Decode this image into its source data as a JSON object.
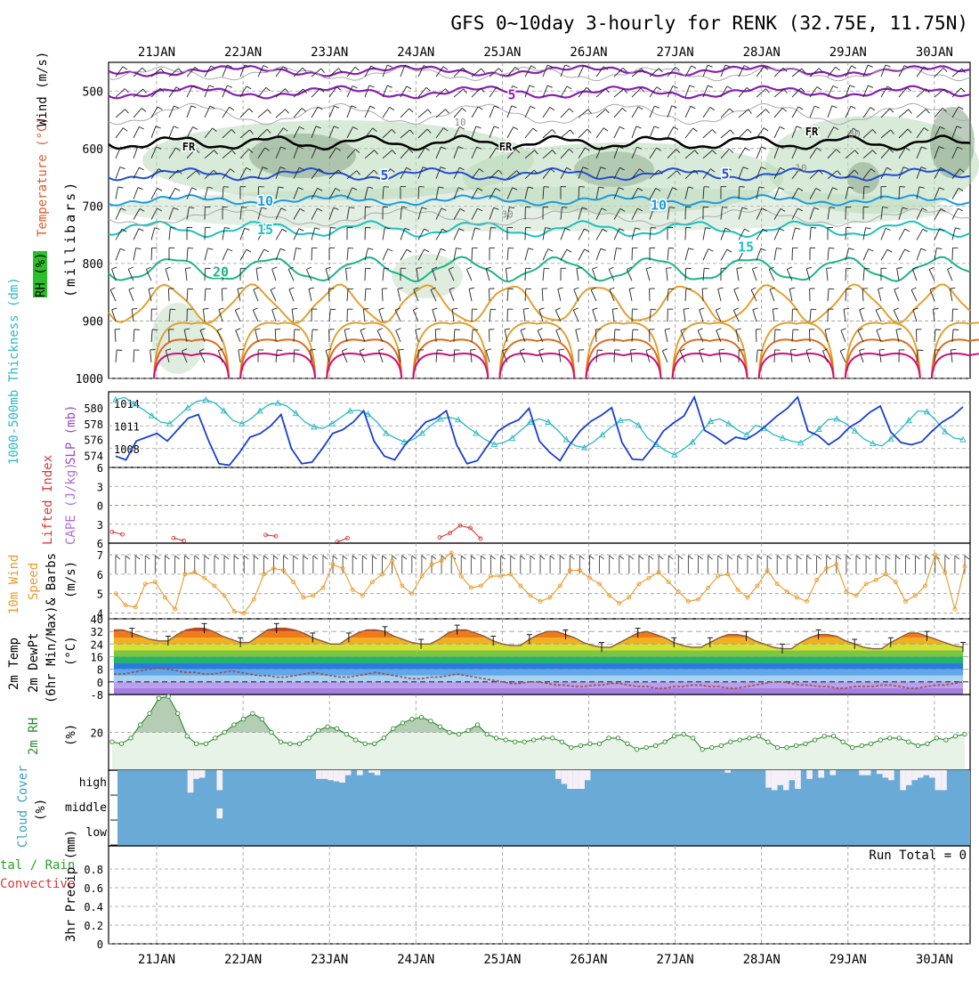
{
  "title": "GFS 0~10day 3-hourly for RENK (32.75E, 11.75N)",
  "dates": [
    "21JAN",
    "22JAN",
    "23JAN",
    "24JAN",
    "25JAN",
    "26JAN",
    "27JAN",
    "28JAN",
    "29JAN",
    "30JAN"
  ],
  "colors": {
    "axis": "#000000",
    "grid": "#999999",
    "temp5": "#8a1fb5",
    "temp_fr": "#000000",
    "temp_blue": "#1f4fd6",
    "temp10": "#1c9be0",
    "temp15": "#1cc1c1",
    "temp20": "#1cb38a",
    "temp_warm": "#e0a030",
    "temp_hot": "#e06a1c",
    "temp_magenta": "#d0107a",
    "rh_fill": "#b8d8b8",
    "rh_dark": "#7a9a7a",
    "slp": "#1a3fcf",
    "thickness": "#2bb8c4",
    "lifted": "#d83a3a",
    "wind10": "#e89a2a",
    "rh2m_line": "#2a8a2a",
    "rh2m_fill": "#e8f3e8",
    "rh2m_peak": "#b5cdb5",
    "cloud": "#6aaad6",
    "cloud_clear": "#f5f0f8",
    "dewpt": "#a05040",
    "temp2m_line": "#8a5a3a"
  },
  "labels": {
    "panel1_label_rh": "RH (%)",
    "panel1_label_temp": "Temperature (°C)",
    "panel1_label_wind": "Wind (m/s)",
    "panel1_axis": "(millibars)",
    "panel2_label_thick": "1000-500mb Thickness (dm)",
    "panel2_label_slp": "SLP (mb)",
    "panel3_label_li": "Lifted Index",
    "panel3_label_cape": "CAPE (J/kg)",
    "panel4_label_a": "10m Wind",
    "panel4_label_b": "Speed",
    "panel4_label_c": "& Barbs",
    "panel4_axis": "(m/s)",
    "panel5_label_a": "2m Temp",
    "panel5_label_b": "2m DewPt",
    "panel5_label_c": "(6hr Min/Max)",
    "panel5_axis": "(°C)",
    "panel6_label": "2m RH",
    "panel6_axis": "(%)",
    "panel7_label": "Cloud Cover",
    "panel7_axis": "(%)",
    "panel8_label_a": "tal / Rain",
    "panel8_label_b": "Convective",
    "panel8_axis": "3hr Precip (mm)",
    "run_total": "Run Total = 0",
    "fr": "FR"
  },
  "chart_data": [
    {
      "type": "line",
      "title": "",
      "panel": "upper-air cross section",
      "yticks": [
        500,
        600,
        700,
        800,
        900,
        1000
      ],
      "ylim": [
        450,
        1000
      ],
      "isotherm_labels": [
        "5",
        "FR",
        "5",
        "10",
        "15",
        "20"
      ],
      "rh_labels": [
        "10",
        "30"
      ],
      "isotherms": [
        {
          "name": "5",
          "level": 502
        },
        {
          "name": "FR",
          "level": 590
        },
        {
          "name": "5",
          "level": 645
        },
        {
          "name": "10",
          "level": 690
        },
        {
          "name": "15",
          "level": 740
        },
        {
          "name": "20",
          "level": 810
        }
      ]
    },
    {
      "type": "line",
      "panel": "thickness and slp",
      "yticks_left": [
        574,
        576,
        578,
        580
      ],
      "yticks_right": [
        1008,
        1011,
        1014
      ],
      "ylim_left": [
        572.5,
        582
      ],
      "ylim_right": [
        1005.5,
        1015.5
      ],
      "series": [
        {
          "name": "SLP",
          "axis": "right",
          "values": [
            1007,
            1006.5,
            1009,
            1009.5,
            1010,
            1009,
            1010.5,
            1012,
            1012.5,
            1009,
            1006,
            1005.8,
            1007.5,
            1009.5,
            1010,
            1011,
            1012.5,
            1008,
            1006,
            1006.2,
            1008,
            1010,
            1010.5,
            1011.5,
            1013,
            1009,
            1007,
            1006.5,
            1008.5,
            1010,
            1011.5,
            1012,
            1013,
            1008.5,
            1006,
            1006.4,
            1008.4,
            1010.3,
            1011.2,
            1011.8,
            1013.3,
            1009,
            1007.5,
            1006.4,
            1008.6,
            1010.4,
            1011.6,
            1012.4,
            1013.4,
            1008.8,
            1006.6,
            1006.5,
            1008.2,
            1010.3,
            1011.4,
            1012.3,
            1014.8,
            1010.4,
            1009.6,
            1008.6,
            1009.5,
            1009.2,
            1010,
            1011.1,
            1012.3,
            1013.3,
            1014.8,
            1010.3,
            1009.7,
            1008.5,
            1009.4,
            1010.8,
            1011.6,
            1012.8,
            1013.6,
            1010.2,
            1008.8,
            1008.5,
            1008.9,
            1010.3,
            1011.5,
            1012.3,
            1013.5
          ]
        },
        {
          "name": "Thickness",
          "axis": "left",
          "values": [
            581,
            581.3,
            580.5,
            579.8,
            579,
            578.2,
            578,
            579,
            580,
            580.8,
            581,
            580.6,
            579.6,
            578.4,
            578,
            578.6,
            579.6,
            580.4,
            580.6,
            580.2,
            579.3,
            578.2,
            577.6,
            577.4,
            578,
            578.8,
            579.6,
            579.7,
            579.2,
            578.2,
            576.8,
            576.2,
            575.7,
            576,
            576.8,
            577.8,
            578.6,
            578.8,
            578.5,
            577.6,
            576.8,
            576,
            575.4,
            575.6,
            576.2,
            577.2,
            578.2,
            578.6,
            578.2,
            577.2,
            576,
            575.2,
            575,
            575.7,
            576.6,
            577.6,
            578.4,
            578.5,
            577.8,
            576.2,
            575.4,
            574.6,
            574.1,
            574.8,
            575.7,
            577,
            578.3,
            578.6,
            578,
            577.2,
            576.6,
            577.8,
            577.4,
            576.6,
            576.2,
            575.8,
            575.6,
            576.3,
            577.3,
            578.5,
            578.6,
            578,
            577.1,
            576.1,
            575.5,
            575.2,
            576.1,
            577.2,
            578.4,
            579.6,
            579.5,
            578.4,
            577,
            576.2,
            576
          ]
        }
      ]
    },
    {
      "type": "line",
      "panel": "lifted index and cape",
      "yticks": [
        -6,
        -3,
        0,
        3,
        6
      ],
      "ylim": [
        -6,
        6
      ],
      "series": [
        {
          "name": "Lifted Index",
          "values": [
            4.2,
            4.6,
            null,
            null,
            null,
            null,
            5.2,
            5.6,
            null,
            null,
            null,
            null,
            null,
            null,
            null,
            4.7,
            4.9,
            null,
            null,
            null,
            null,
            null,
            5.8,
            5.2,
            null,
            null,
            null,
            null,
            null,
            null,
            null,
            null,
            5.1,
            4.4,
            3.2,
            3.6,
            5.3
          ]
        }
      ]
    },
    {
      "type": "line",
      "panel": "10m wind speed",
      "yticks": [
        4,
        5,
        6,
        7
      ],
      "ylim": [
        3.7,
        7.6
      ],
      "series": [
        {
          "name": "10m Wind Speed",
          "values": [
            5,
            4.4,
            4.3,
            5.5,
            5.6,
            4.8,
            4.2,
            6,
            6.1,
            5.8,
            5.4,
            4.9,
            4.1,
            4,
            4.7,
            6,
            6.3,
            6.2,
            5.6,
            4.8,
            4.9,
            5.3,
            6.5,
            6.3,
            5.2,
            4.9,
            5.6,
            6,
            6.7,
            5.4,
            5,
            5.9,
            6.5,
            6.7,
            7.1,
            5.9,
            5.3,
            5.4,
            5.9,
            5.9,
            6,
            5.4,
            4.9,
            4.6,
            4.8,
            5.4,
            6.2,
            6.2,
            5.8,
            5.5,
            4.9,
            4.5,
            4.8,
            5.5,
            5.8,
            6.1,
            5.6,
            5.1,
            4.6,
            4.7,
            5.3,
            5.9,
            6,
            5.2,
            4.8,
            5.4,
            6.2,
            5.5,
            5.1,
            4.8,
            4.6,
            5.7,
            6.3,
            6.5,
            5.1,
            4.9,
            5.5,
            5.7,
            6,
            5.6,
            4.6,
            4.9,
            5.4,
            7,
            6.1,
            4.2,
            6.4
          ]
        }
      ]
    },
    {
      "type": "area",
      "panel": "2m temperature and dewpoint",
      "yticks": [
        -8,
        0,
        8,
        16,
        24,
        32,
        40
      ],
      "ylim": [
        -8,
        40
      ],
      "series": [
        {
          "name": "2m Temp",
          "values": [
            33,
            33,
            31,
            29,
            27,
            26,
            26,
            30,
            33,
            34,
            34,
            32,
            29,
            27,
            25,
            25,
            29,
            33,
            34,
            34,
            33,
            31,
            28,
            26,
            24,
            24,
            28,
            31,
            33,
            33,
            32,
            29,
            27,
            25,
            24,
            24,
            27,
            31,
            33,
            33,
            31,
            29,
            26,
            24,
            23,
            23,
            27,
            30,
            32,
            32,
            30,
            28,
            25,
            23,
            22,
            22,
            25,
            28,
            31,
            32,
            30,
            28,
            25,
            23,
            22,
            22,
            25,
            28,
            30,
            30,
            29,
            26,
            24,
            22,
            21,
            21,
            25,
            28,
            30,
            30,
            29,
            26,
            24,
            22,
            21,
            21,
            25,
            28,
            31,
            31,
            29,
            27,
            25,
            23,
            22
          ]
        },
        {
          "name": "2m DewPt",
          "values": [
            5,
            5,
            6,
            7,
            8,
            9,
            8,
            7,
            6,
            6,
            5,
            5,
            6,
            7,
            6,
            5,
            4,
            4,
            3,
            3,
            4,
            5,
            6,
            5,
            4,
            3,
            3,
            4,
            5,
            6,
            5,
            4,
            3,
            2,
            2,
            3,
            3,
            4,
            5,
            4,
            3,
            2,
            1,
            0,
            -1,
            -1,
            0,
            0,
            -1,
            -2,
            -2,
            -3,
            -3,
            -2,
            -2,
            -1,
            -1,
            -2,
            -3,
            -3,
            -4,
            -4,
            -3,
            -3,
            -2,
            -2,
            -3,
            -3,
            -4,
            -4,
            -3,
            -2,
            -1,
            0,
            0,
            -1,
            -2,
            -2,
            -3,
            -3,
            -4,
            -4,
            -3,
            -3,
            -3,
            -2,
            -2,
            -3,
            -4,
            -4,
            -3,
            -2,
            -2,
            -1,
            0
          ]
        }
      ]
    },
    {
      "type": "area",
      "panel": "2m relative humidity",
      "yticks": [
        20
      ],
      "ylim": [
        0,
        40
      ],
      "series": [
        {
          "name": "2m RH",
          "values": [
            15,
            14,
            17,
            24,
            30,
            38,
            39,
            30,
            18,
            14,
            14,
            17,
            20,
            24,
            27,
            30,
            27,
            20,
            15,
            14,
            14,
            17,
            21,
            23,
            22,
            19,
            16,
            14,
            14,
            17,
            22,
            25,
            27,
            28,
            26,
            23,
            20,
            19,
            21,
            24,
            19,
            17,
            16,
            15,
            15,
            16,
            17,
            17,
            15,
            12,
            13,
            14,
            14,
            17,
            17,
            14,
            11,
            12,
            13,
            15,
            18,
            19,
            17,
            11,
            12,
            13,
            15,
            16,
            17,
            18,
            15,
            12,
            12,
            13,
            14,
            16,
            18,
            18,
            15,
            12,
            13,
            14,
            16,
            17,
            17,
            15,
            13,
            14,
            17,
            16,
            18,
            19
          ]
        }
      ]
    },
    {
      "type": "bar",
      "panel": "cloud cover",
      "yticks_labels": [
        "high",
        "middle",
        "low"
      ],
      "series": [
        {
          "name": "high",
          "values": [
            0,
            0,
            0,
            0,
            0,
            0,
            0,
            0,
            0,
            0,
            0,
            0,
            90,
            35,
            30,
            0,
            0,
            80,
            0,
            0,
            0,
            0,
            0,
            0,
            0,
            0,
            0,
            0,
            0,
            0,
            0,
            0,
            0,
            0,
            35,
            35,
            40,
            45,
            50,
            20,
            0,
            20,
            0,
            10,
            20,
            0,
            0,
            0,
            0,
            0,
            0,
            0,
            0,
            0,
            0,
            0,
            0,
            0,
            0,
            0,
            0,
            0,
            0,
            0,
            0,
            0,
            0,
            0,
            0,
            0,
            0,
            0,
            0,
            0,
            0,
            35,
            55,
            75,
            75,
            75,
            40,
            0,
            0,
            0,
            0,
            0,
            0,
            0,
            0,
            0,
            0,
            0,
            0,
            0,
            0,
            0,
            0,
            0,
            0,
            0,
            0,
            0,
            0,
            0,
            10,
            0,
            0,
            0,
            0,
            0,
            0,
            70,
            80,
            60,
            80,
            40,
            75,
            0,
            35,
            0,
            30,
            0,
            20,
            0,
            0,
            0,
            0,
            20,
            20,
            0,
            15,
            30,
            40,
            0,
            80,
            60,
            40,
            30,
            20,
            30,
            80,
            80,
            0,
            0,
            0,
            0
          ]
        },
        {
          "name": "middle",
          "values": [
            0,
            0,
            0,
            0,
            0,
            0,
            0,
            0,
            0,
            0,
            0,
            0,
            0,
            0,
            0,
            0,
            0,
            40,
            0,
            0,
            0,
            0,
            0,
            0,
            0,
            0,
            0,
            0,
            0,
            0,
            0,
            0,
            0,
            0,
            0,
            0,
            0,
            0,
            0,
            0,
            0,
            0,
            0,
            0,
            0,
            0,
            0,
            0,
            0,
            0,
            0,
            0,
            0,
            0,
            0,
            0,
            0,
            0,
            0,
            0,
            0,
            0,
            0,
            0,
            0,
            0,
            0,
            0,
            0,
            0,
            0,
            0,
            0,
            0,
            0,
            0,
            0,
            0,
            0,
            0,
            0,
            0,
            0,
            0,
            0,
            0,
            0,
            0,
            0,
            0,
            0,
            0,
            0,
            0,
            0,
            0,
            0,
            0,
            0,
            0,
            0,
            0,
            0,
            0,
            0,
            0,
            0,
            0,
            0,
            0,
            0,
            0,
            0,
            0,
            0,
            0,
            0,
            0,
            0,
            0,
            0,
            0,
            0,
            0,
            0,
            0,
            0,
            0,
            0,
            0,
            0,
            0,
            0,
            0,
            0,
            0,
            0,
            0,
            0,
            0,
            0,
            0,
            0,
            0,
            0,
            0,
            0,
            0,
            0,
            0,
            0
          ]
        },
        {
          "name": "low",
          "values": []
        }
      ]
    },
    {
      "type": "bar",
      "panel": "3hr precip",
      "yticks": [
        0,
        0.2,
        0.4,
        0.6,
        0.8
      ],
      "ylim": [
        0,
        1
      ],
      "series": [
        {
          "name": "precip",
          "values": []
        }
      ]
    }
  ]
}
